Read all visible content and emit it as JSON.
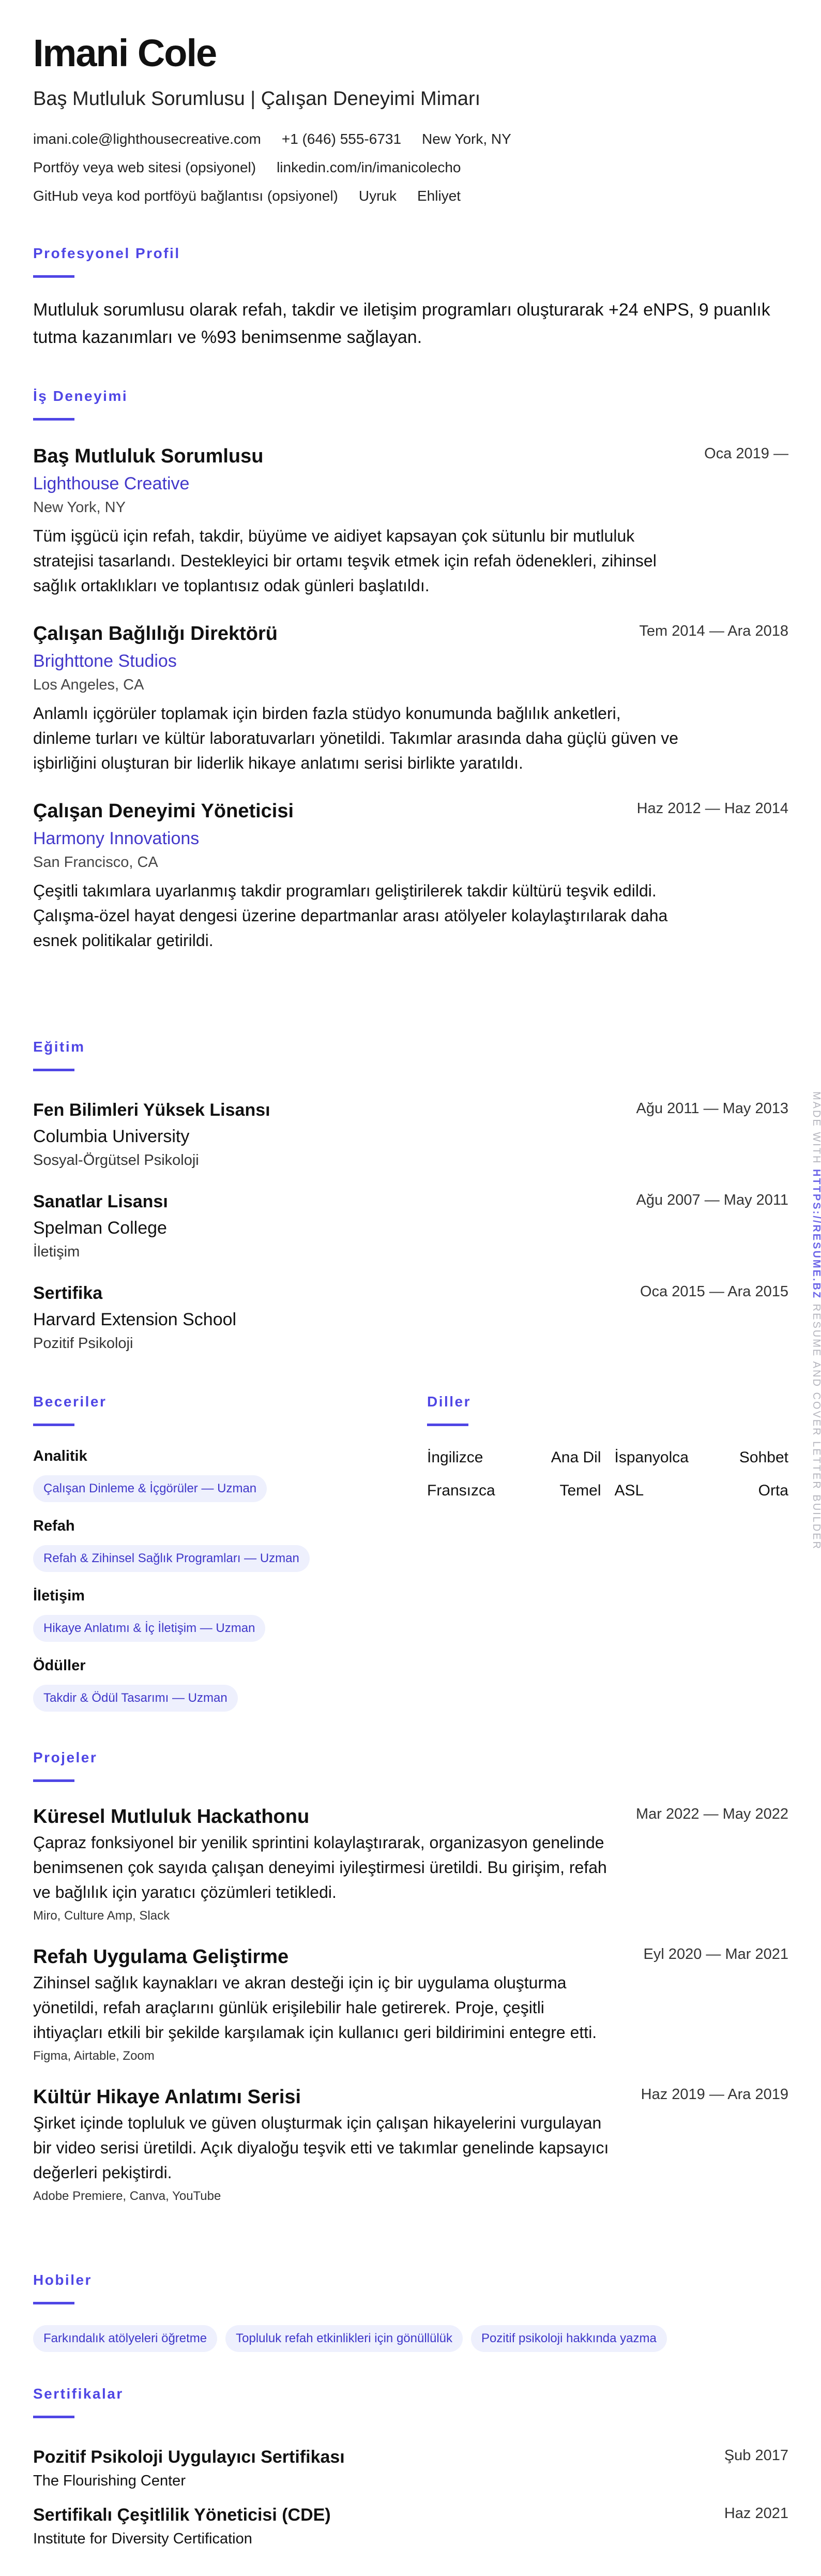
{
  "header": {
    "name": "Imani Cole",
    "title": "Baş Mutluluk Sorumlusu | Çalışan Deneyimi Mimarı",
    "contact_rows": [
      [
        "imani.cole@lighthousecreative.com",
        "+1 (646) 555-6731",
        "New York, NY"
      ],
      [
        "Portföy veya web sitesi (opsiyonel)",
        "linkedin.com/in/imanicolecho"
      ],
      [
        "GitHub veya kod portföyü bağlantısı (opsiyonel)",
        "Uyruk",
        "Ehliyet"
      ]
    ]
  },
  "profile": {
    "heading": "Profesyonel Profil",
    "text": "Mutluluk sorumlusu olarak refah, takdir ve iletişim programları oluşturarak +24 eNPS, 9 puanlık tutma kazanımları ve %93 benimsenme sağlayan."
  },
  "experience": {
    "heading": "İş Deneyimi",
    "items": [
      {
        "title": "Baş Mutluluk Sorumlusu",
        "date": "Oca 2019 —",
        "company": "Lighthouse Creative",
        "location": "New York, NY",
        "desc": "Tüm işgücü için refah, takdir, büyüme ve aidiyet kapsayan çok sütunlu bir mutluluk stratejisi tasarlandı. Destekleyici bir ortamı teşvik etmek için refah ödenekleri, zihinsel sağlık ortaklıkları ve toplantısız odak günleri başlatıldı."
      },
      {
        "title": "Çalışan Bağlılığı Direktörü",
        "date": "Tem 2014 — Ara 2018",
        "company": "Brighttone Studios",
        "location": "Los Angeles, CA",
        "desc": "Anlamlı içgörüler toplamak için birden fazla stüdyo konumunda bağlılık anketleri, dinleme turları ve kültür laboratuvarları yönetildi. Takımlar arasında daha güçlü güven ve işbirliğini oluşturan bir liderlik hikaye anlatımı serisi birlikte yaratıldı."
      },
      {
        "title": "Çalışan Deneyimi Yöneticisi",
        "date": "Haz 2012 — Haz 2014",
        "company": "Harmony Innovations",
        "location": "San Francisco, CA",
        "desc": "Çeşitli takımlara uyarlanmış takdir programları geliştirilerek takdir kültürü teşvik edildi. Çalışma-özel hayat dengesi üzerine departmanlar arası atölyeler kolaylaştırılarak daha esnek politikalar getirildi."
      }
    ]
  },
  "education": {
    "heading": "Eğitim",
    "items": [
      {
        "degree": "Fen Bilimleri Yüksek Lisansı",
        "date": "Ağu 2011 — May 2013",
        "school": "Columbia University",
        "field": "Sosyal-Örgütsel Psikoloji"
      },
      {
        "degree": "Sanatlar Lisansı",
        "date": "Ağu 2007 — May 2011",
        "school": "Spelman College",
        "field": "İletişim"
      },
      {
        "degree": "Sertifika",
        "date": "Oca 2015 — Ara 2015",
        "school": "Harvard Extension School",
        "field": "Pozitif Psikoloji"
      }
    ]
  },
  "skills": {
    "heading": "Beceriler",
    "items": [
      {
        "category": "Analitik",
        "pill": "Çalışan Dinleme & İçgörüler — Uzman"
      },
      {
        "category": "Refah",
        "pill": "Refah & Zihinsel Sağlık Programları — Uzman"
      },
      {
        "category": "İletişim",
        "pill": "Hikaye Anlatımı & İç İletişim — Uzman"
      },
      {
        "category": "Ödüller",
        "pill": "Takdir & Ödül Tasarımı — Uzman"
      }
    ]
  },
  "languages": {
    "heading": "Diller",
    "items": [
      {
        "name": "İngilizce",
        "level": "Ana Dil"
      },
      {
        "name": "İspanyolca",
        "level": "Sohbet"
      },
      {
        "name": "Fransızca",
        "level": "Temel"
      },
      {
        "name": "ASL",
        "level": "Orta"
      }
    ]
  },
  "projects": {
    "heading": "Projeler",
    "items": [
      {
        "title": "Küresel Mutluluk Hackathonu",
        "date": "Mar 2022 — May 2022",
        "desc": "Çapraz fonksiyonel bir yenilik sprintini kolaylaştırarak, organizasyon genelinde benimsenen çok sayıda çalışan deneyimi iyileştirmesi üretildi. Bu girişim, refah ve bağlılık için yaratıcı çözümleri tetikledi.",
        "tools": "Miro, Culture Amp, Slack"
      },
      {
        "title": "Refah Uygulama Geliştirme",
        "date": "Eyl 2020 — Mar 2021",
        "desc": "Zihinsel sağlık kaynakları ve akran desteği için iç bir uygulama oluşturma yönetildi, refah araçlarını günlük erişilebilir hale getirerek. Proje, çeşitli ihtiyaçları etkili bir şekilde karşılamak için kullanıcı geri bildirimini entegre etti.",
        "tools": "Figma, Airtable, Zoom"
      },
      {
        "title": "Kültür Hikaye Anlatımı Serisi",
        "date": "Haz 2019 — Ara 2019",
        "desc": "Şirket içinde topluluk ve güven oluşturmak için çalışan hikayelerini vurgulayan bir video serisi üretildi. Açık diyaloğu teşvik etti ve takımlar genelinde kapsayıcı değerleri pekiştirdi.",
        "tools": "Adobe Premiere, Canva, YouTube"
      }
    ]
  },
  "hobbies": {
    "heading": "Hobiler",
    "items": [
      "Farkındalık atölyeleri öğretme",
      "Topluluk refah etkinlikleri için gönüllülük",
      "Pozitif psikoloji hakkında yazma"
    ]
  },
  "certifications": {
    "heading": "Sertifikalar",
    "items": [
      {
        "title": "Pozitif Psikoloji Uygulayıcı Sertifikası",
        "date": "Şub 2017",
        "issuer": "The Flourishing Center"
      },
      {
        "title": "Sertifikalı Çeşitlilik Yöneticisi (CDE)",
        "date": "Haz 2021",
        "issuer": "Institute for Diversity Certification"
      }
    ]
  },
  "watermark": {
    "prefix": "MADE WITH ",
    "link": "HTTPS://RESUME.BZ",
    "suffix": " RESUME AND COVER LETTER BUILDER"
  },
  "colors": {
    "accent": "#4f46e5",
    "pill_bg": "#eef0fd"
  }
}
